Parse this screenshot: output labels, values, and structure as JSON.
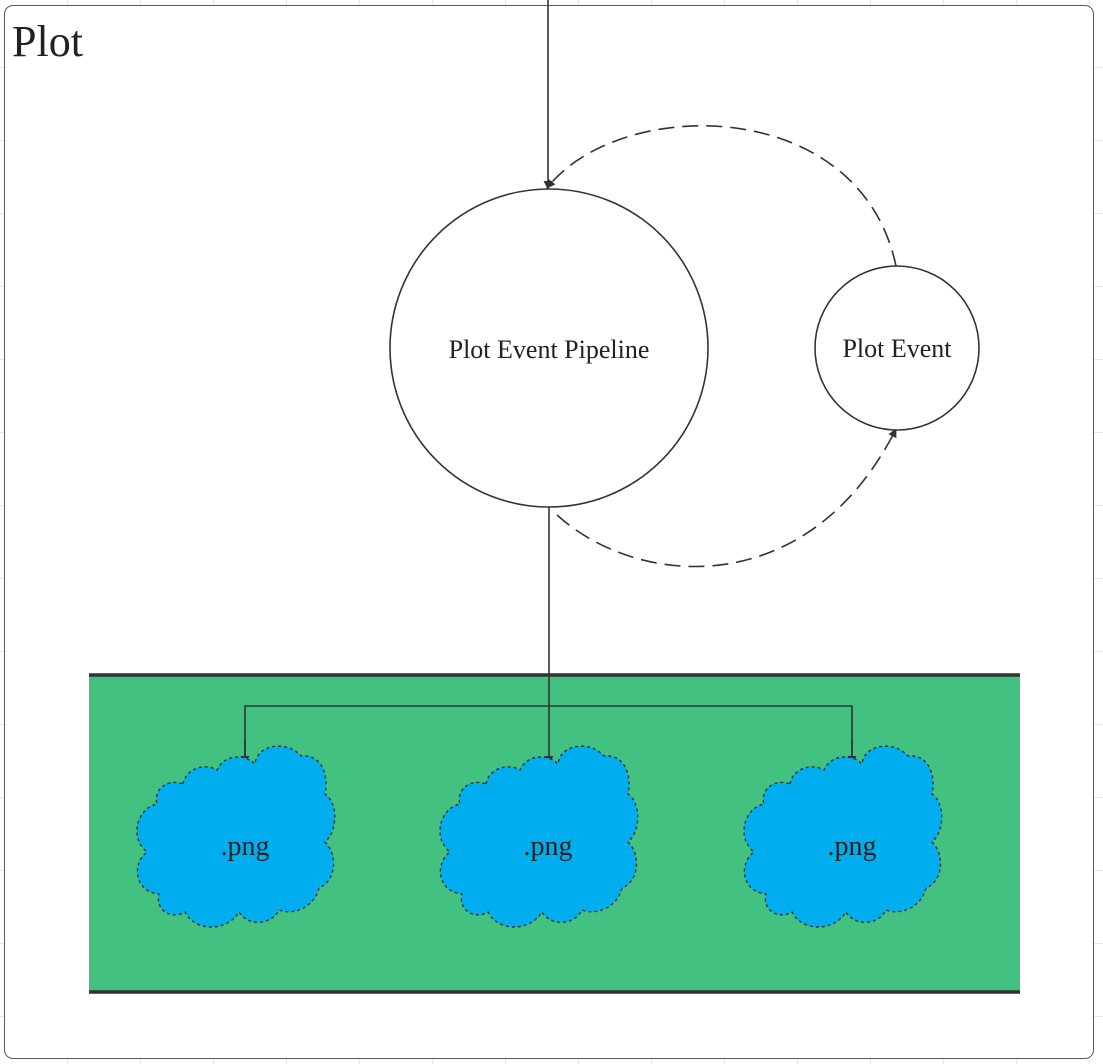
{
  "frame": {
    "title": "Plot"
  },
  "nodes": {
    "pipeline": {
      "label": "Plot Event Pipeline"
    },
    "event": {
      "label": "Plot Event"
    }
  },
  "outputs": [
    {
      "label": ".png"
    },
    {
      "label": ".png"
    },
    {
      "label": ".png"
    }
  ],
  "colors": {
    "band_fill": "#43c181",
    "band_border": "#333333",
    "cloud_fill": "#00aeef",
    "line": "#333333",
    "grid": "#e6e6e6"
  }
}
